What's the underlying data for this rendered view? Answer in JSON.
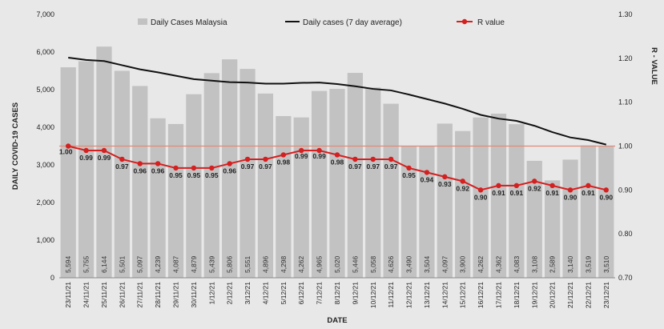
{
  "chart_data": {
    "type": "bar",
    "xlabel": "DATE",
    "ylabel": "DAILY COVID-19 CASES",
    "y2label": "R - VALUE",
    "ylim": [
      0,
      7000
    ],
    "y2lim": [
      0.7,
      1.3
    ],
    "yticks": [
      "0",
      "1,000",
      "2,000",
      "3,000",
      "4,000",
      "5,000",
      "6,000",
      "7,000"
    ],
    "y2ticks": [
      "0.70",
      "0.80",
      "0.90",
      "1.00",
      "1.10",
      "1.20",
      "1.30"
    ],
    "legend_position": "top",
    "grid": false,
    "reference_line": {
      "axis": "y2",
      "value": 1.0,
      "color": "#e08b7a"
    },
    "categories": [
      "23/11/21",
      "24/11/21",
      "25/11/21",
      "26/11/21",
      "27/11/21",
      "28/11/21",
      "29/11/21",
      "30/11/21",
      "1/12/21",
      "2/12/21",
      "3/12/21",
      "4/12/21",
      "5/12/21",
      "6/12/21",
      "7/12/21",
      "8/12/21",
      "9/12/21",
      "10/12/21",
      "11/12/21",
      "12/12/21",
      "13/12/21",
      "14/12/21",
      "15/12/21",
      "16/12/21",
      "17/12/21",
      "18/12/21",
      "19/12/21",
      "20/12/21",
      "21/12/21",
      "22/12/21",
      "23/12/21"
    ],
    "series": [
      {
        "name": "Daily Cases Malaysia",
        "type": "bar",
        "color": "#c2c2c2",
        "values": [
          5594,
          5755,
          6144,
          5501,
          5097,
          4239,
          4087,
          4879,
          5439,
          5806,
          5551,
          4896,
          4298,
          4262,
          4965,
          5020,
          5446,
          5058,
          4626,
          3490,
          3504,
          4097,
          3900,
          4262,
          4362,
          4083,
          3108,
          2589,
          3140,
          3519,
          3510
        ],
        "labels": [
          "5,594",
          "5,755",
          "6,144",
          "5,501",
          "5,097",
          "4,239",
          "4,087",
          "4,879",
          "5,439",
          "5,806",
          "5,551",
          "4,896",
          "4,298",
          "4,262",
          "4,965",
          "5,020",
          "5,446",
          "5,058",
          "4,626",
          "3,490",
          "3,504",
          "4,097",
          "3,900",
          "4,262",
          "4,362",
          "4,083",
          "3,108",
          "2,589",
          "3,140",
          "3,519",
          "3,510"
        ]
      },
      {
        "name": "Daily cases (7 day average)",
        "type": "line",
        "color": "#111111",
        "values": [
          5850,
          5790,
          5760,
          5650,
          5540,
          5460,
          5370,
          5280,
          5240,
          5200,
          5190,
          5160,
          5160,
          5180,
          5190,
          5150,
          5090,
          5020,
          4980,
          4870,
          4750,
          4630,
          4490,
          4330,
          4230,
          4170,
          4040,
          3870,
          3730,
          3660,
          3540
        ]
      },
      {
        "name": "R value",
        "type": "line",
        "axis": "y2",
        "color": "#d42020",
        "values": [
          1.0,
          0.99,
          0.99,
          0.97,
          0.96,
          0.96,
          0.95,
          0.95,
          0.95,
          0.96,
          0.97,
          0.97,
          0.98,
          0.99,
          0.99,
          0.98,
          0.97,
          0.97,
          0.97,
          0.95,
          0.94,
          0.93,
          0.92,
          0.9,
          0.91,
          0.91,
          0.92,
          0.91,
          0.9,
          0.91,
          0.9
        ],
        "labels": [
          "1.00",
          "0.99",
          "0.99",
          "0.97",
          "0.96",
          "0.96",
          "0.95",
          "0.95",
          "0.95",
          "0.96",
          "0.97",
          "0.97",
          "0.98",
          "0.99",
          "0.99",
          "0.98",
          "0.97",
          "0.97",
          "0.97",
          "0.95",
          "0.94",
          "0.93",
          "0.92",
          "0.90",
          "0.91",
          "0.91",
          "0.92",
          "0.91",
          "0.90",
          "0.91",
          "0.90"
        ]
      }
    ]
  }
}
